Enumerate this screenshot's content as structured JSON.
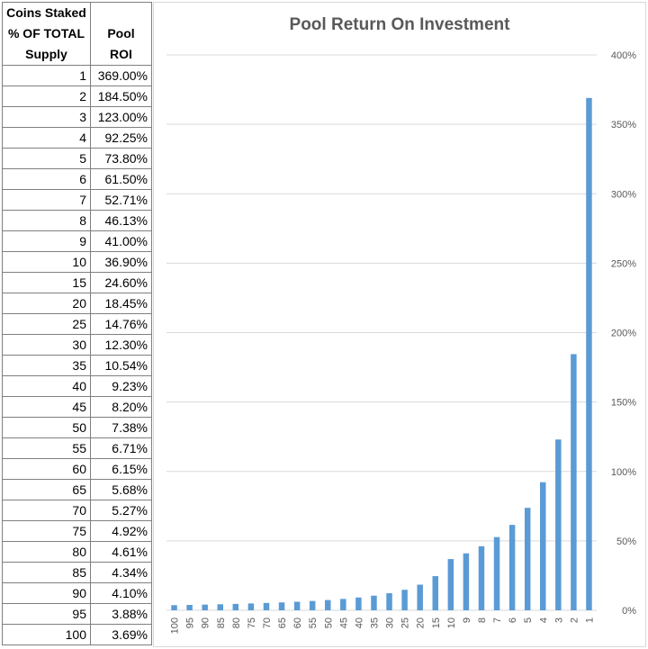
{
  "table": {
    "header_col1": [
      "Coins Staked",
      "% OF TOTAL",
      "Supply"
    ],
    "header_col2": "Pool ROI",
    "rows": [
      {
        "pct": "1",
        "roi": "369.00%"
      },
      {
        "pct": "2",
        "roi": "184.50%"
      },
      {
        "pct": "3",
        "roi": "123.00%"
      },
      {
        "pct": "4",
        "roi": "92.25%"
      },
      {
        "pct": "5",
        "roi": "73.80%"
      },
      {
        "pct": "6",
        "roi": "61.50%"
      },
      {
        "pct": "7",
        "roi": "52.71%"
      },
      {
        "pct": "8",
        "roi": "46.13%"
      },
      {
        "pct": "9",
        "roi": "41.00%"
      },
      {
        "pct": "10",
        "roi": "36.90%"
      },
      {
        "pct": "15",
        "roi": "24.60%"
      },
      {
        "pct": "20",
        "roi": "18.45%"
      },
      {
        "pct": "25",
        "roi": "14.76%"
      },
      {
        "pct": "30",
        "roi": "12.30%"
      },
      {
        "pct": "35",
        "roi": "10.54%"
      },
      {
        "pct": "40",
        "roi": "9.23%"
      },
      {
        "pct": "45",
        "roi": "8.20%"
      },
      {
        "pct": "50",
        "roi": "7.38%"
      },
      {
        "pct": "55",
        "roi": "6.71%"
      },
      {
        "pct": "60",
        "roi": "6.15%"
      },
      {
        "pct": "65",
        "roi": "5.68%"
      },
      {
        "pct": "70",
        "roi": "5.27%"
      },
      {
        "pct": "75",
        "roi": "4.92%"
      },
      {
        "pct": "80",
        "roi": "4.61%"
      },
      {
        "pct": "85",
        "roi": "4.34%"
      },
      {
        "pct": "90",
        "roi": "4.10%"
      },
      {
        "pct": "95",
        "roi": "3.88%"
      },
      {
        "pct": "100",
        "roi": "3.69%"
      }
    ]
  },
  "chart_data": {
    "type": "bar",
    "title": "Pool Return On Investment",
    "xlabel": "",
    "ylabel": "",
    "categories": [
      "100",
      "95",
      "90",
      "85",
      "80",
      "75",
      "70",
      "65",
      "60",
      "55",
      "50",
      "45",
      "40",
      "35",
      "30",
      "25",
      "20",
      "15",
      "10",
      "9",
      "8",
      "7",
      "6",
      "5",
      "4",
      "3",
      "2",
      "1"
    ],
    "values": [
      3.69,
      3.88,
      4.1,
      4.34,
      4.61,
      4.92,
      5.27,
      5.68,
      6.15,
      6.71,
      7.38,
      8.2,
      9.23,
      10.54,
      12.3,
      14.76,
      18.45,
      24.6,
      36.9,
      41.0,
      46.13,
      52.71,
      61.5,
      73.8,
      92.25,
      123.0,
      184.5,
      369.0
    ],
    "ylim": [
      0,
      400
    ],
    "yticks": [
      0,
      50,
      100,
      150,
      200,
      250,
      300,
      350,
      400
    ],
    "ytick_labels": [
      "0%",
      "50%",
      "100%",
      "150%",
      "200%",
      "250%",
      "300%",
      "350%",
      "400%"
    ],
    "y_axis_position": "right",
    "grid": true,
    "bar_color": "#5b9bd5",
    "grid_color": "#d9d9d9"
  }
}
